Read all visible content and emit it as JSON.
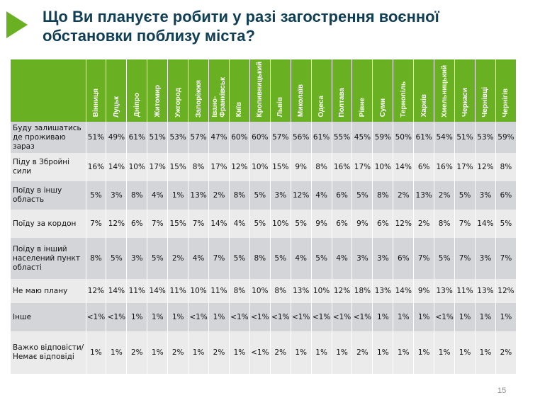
{
  "slide": {
    "title_line1": "Що Ви плануєте робити у разі загострення воєнної",
    "title_line2": "обстановки поблизу міста?",
    "page_number": "15",
    "accent_color": "#6ab023",
    "title_color": "#0f3e55"
  },
  "table": {
    "columns": [
      "Вінниця",
      "Луцьк",
      "Дніпро",
      "Житомир",
      "Ужгород",
      "Запоріжжя",
      "Івано-\nФранківськ",
      "Київ",
      "Кропивницький",
      "Львів",
      "Миколаїв",
      "Одеса",
      "Полтава",
      "Рівне",
      "Суми",
      "Тернопіль",
      "Харків",
      "Хмельницький",
      "Черкаси",
      "Чернівці",
      "Чернігів"
    ],
    "rows": [
      {
        "label": "Буду залишатись де проживаю зараз",
        "values": [
          "51%",
          "49%",
          "61%",
          "51%",
          "53%",
          "57%",
          "47%",
          "60%",
          "60%",
          "57%",
          "56%",
          "61%",
          "55%",
          "45%",
          "59%",
          "50%",
          "61%",
          "54%",
          "51%",
          "53%",
          "59%"
        ]
      },
      {
        "label": "Піду в Збройні сили",
        "values": [
          "16%",
          "14%",
          "10%",
          "17%",
          "15%",
          "8%",
          "17%",
          "12%",
          "10%",
          "15%",
          "9%",
          "8%",
          "16%",
          "17%",
          "10%",
          "14%",
          "6%",
          "16%",
          "17%",
          "12%",
          "8%"
        ]
      },
      {
        "label": "Поїду в іншу область",
        "values": [
          "5%",
          "3%",
          "8%",
          "4%",
          "1%",
          "13%",
          "2%",
          "8%",
          "5%",
          "3%",
          "12%",
          "4%",
          "6%",
          "5%",
          "8%",
          "2%",
          "13%",
          "2%",
          "5%",
          "3%",
          "6%"
        ]
      },
      {
        "label": "Поїду за кордон",
        "values": [
          "7%",
          "12%",
          "6%",
          "7%",
          "15%",
          "7%",
          "14%",
          "4%",
          "5%",
          "10%",
          "5%",
          "9%",
          "6%",
          "9%",
          "6%",
          "12%",
          "2%",
          "8%",
          "7%",
          "14%",
          "5%"
        ]
      },
      {
        "label": "Поїду в інший населений пункт області",
        "values": [
          "8%",
          "5%",
          "3%",
          "5%",
          "2%",
          "4%",
          "7%",
          "5%",
          "8%",
          "5%",
          "4%",
          "5%",
          "4%",
          "3%",
          "3%",
          "6%",
          "7%",
          "5%",
          "7%",
          "3%",
          "7%"
        ]
      },
      {
        "label": "Не маю плану",
        "values": [
          "12%",
          "14%",
          "11%",
          "14%",
          "11%",
          "10%",
          "11%",
          "8%",
          "10%",
          "8%",
          "13%",
          "10%",
          "12%",
          "18%",
          "13%",
          "14%",
          "9%",
          "13%",
          "11%",
          "13%",
          "12%"
        ]
      },
      {
        "label": "Інше",
        "values": [
          "<1%",
          "<1%",
          "1%",
          "1%",
          "1%",
          "<1%",
          "1%",
          "<1%",
          "<1%",
          "<1%",
          "<1%",
          "<1%",
          "<1%",
          "<1%",
          "1%",
          "1%",
          "1%",
          "<1%",
          "1%",
          "1%",
          "1%"
        ]
      },
      {
        "label": "Важко відповісти/Немає відповіді",
        "values": [
          "1%",
          "1%",
          "2%",
          "1%",
          "2%",
          "1%",
          "2%",
          "1%",
          "<1%",
          "2%",
          "1%",
          "1%",
          "1%",
          "2%",
          "1%",
          "1%",
          "1%",
          "1%",
          "1%",
          "1%",
          "2%"
        ]
      }
    ]
  }
}
